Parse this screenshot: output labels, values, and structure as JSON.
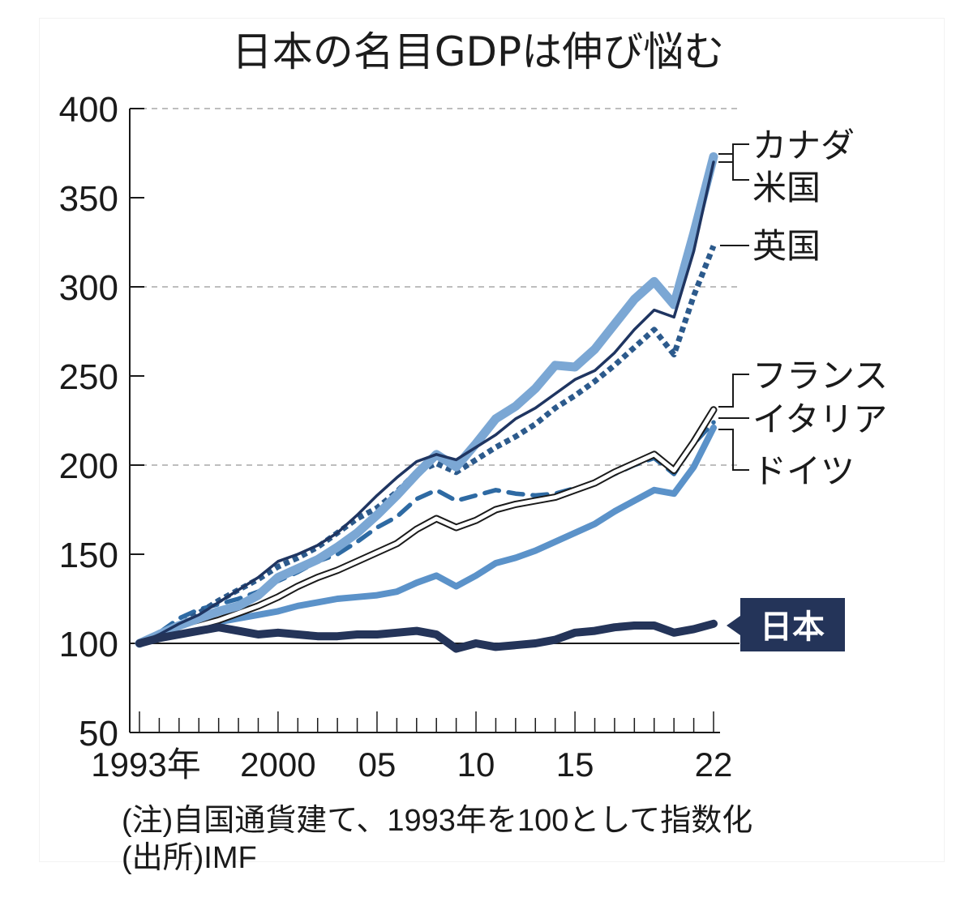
{
  "chart_data": {
    "type": "line",
    "title": "日本の名目GDPは伸び悩む",
    "xlabel": "",
    "ylabel": "",
    "ylim": [
      50,
      400
    ],
    "xlim": [
      1993,
      2022
    ],
    "y_ticks": [
      50,
      100,
      150,
      200,
      250,
      300,
      350,
      400
    ],
    "y_tick_labels": [
      "50",
      "100",
      "150",
      "200",
      "250",
      "300",
      "350",
      "400"
    ],
    "gridlines_dashed_at": [
      200,
      300,
      400
    ],
    "baseline": 100,
    "x_ticks_major": [
      1993,
      2000,
      2005,
      2010,
      2015,
      2022
    ],
    "x_tick_labels": [
      "1993年",
      "2000",
      "05",
      "10",
      "15",
      "22"
    ],
    "x": [
      1993,
      1994,
      1995,
      1996,
      1997,
      1998,
      1999,
      2000,
      2001,
      2002,
      2003,
      2004,
      2005,
      2006,
      2007,
      2008,
      2009,
      2010,
      2011,
      2012,
      2013,
      2014,
      2015,
      2016,
      2017,
      2018,
      2019,
      2020,
      2021,
      2022
    ],
    "series": [
      {
        "name": "カナダ",
        "style": "thick-light",
        "color": "#7ba7d4",
        "values": [
          100,
          105,
          110,
          114,
          118,
          121,
          127,
          137,
          142,
          147,
          154,
          162,
          172,
          183,
          195,
          206,
          199,
          212,
          226,
          233,
          243,
          256,
          255,
          265,
          279,
          293,
          303,
          290,
          330,
          373
        ]
      },
      {
        "name": "米国",
        "style": "thin-solid",
        "color": "#1f3561",
        "values": [
          100,
          105,
          111,
          116,
          123,
          130,
          137,
          146,
          150,
          155,
          162,
          172,
          183,
          193,
          202,
          206,
          203,
          210,
          217,
          226,
          232,
          240,
          248,
          253,
          263,
          276,
          287,
          283,
          320,
          370
        ]
      },
      {
        "name": "英国",
        "style": "dotted",
        "color": "#2c5a8c",
        "values": [
          100,
          106,
          110,
          117,
          124,
          130,
          136,
          143,
          148,
          154,
          162,
          170,
          176,
          185,
          196,
          201,
          196,
          203,
          210,
          216,
          223,
          232,
          239,
          247,
          256,
          266,
          276,
          262,
          295,
          323
        ]
      },
      {
        "name": "フランス",
        "style": "double",
        "color": "#1a1a1a",
        "values": [
          100,
          103,
          107,
          110,
          113,
          117,
          121,
          126,
          132,
          137,
          141,
          146,
          151,
          156,
          164,
          170,
          165,
          169,
          175,
          178,
          180,
          182,
          186,
          190,
          196,
          201,
          206,
          197,
          213,
          231
        ]
      },
      {
        "name": "イタリア",
        "style": "dashed",
        "color": "#2e6aa3",
        "values": [
          100,
          106,
          114,
          119,
          122,
          125,
          129,
          135,
          140,
          146,
          150,
          157,
          165,
          171,
          181,
          186,
          180,
          183,
          186,
          184,
          183,
          184,
          187,
          190,
          195,
          200,
          204,
          195,
          212,
          224
        ]
      },
      {
        "name": "ドイツ",
        "style": "medium",
        "color": "#5b92c9",
        "values": [
          100,
          104,
          108,
          110,
          112,
          114,
          116,
          118,
          121,
          123,
          125,
          126,
          127,
          129,
          134,
          138,
          132,
          138,
          145,
          148,
          152,
          157,
          162,
          167,
          174,
          180,
          186,
          184,
          199,
          221
        ]
      },
      {
        "name": "日本",
        "style": "thick-dark",
        "color": "#243459",
        "values": [
          100,
          103,
          105,
          107,
          109,
          107,
          105,
          106,
          105,
          104,
          104,
          105,
          105,
          106,
          107,
          105,
          97,
          100,
          98,
          99,
          100,
          102,
          106,
          107,
          109,
          110,
          110,
          106,
          108,
          111
        ]
      }
    ],
    "legend": [
      {
        "label": "カナダ",
        "group": "top"
      },
      {
        "label": "米国",
        "group": "top"
      },
      {
        "label": "英国",
        "group": "top"
      },
      {
        "label": "フランス",
        "group": "middle"
      },
      {
        "label": "イタリア",
        "group": "middle"
      },
      {
        "label": "ドイツ",
        "group": "middle"
      },
      {
        "label": "日本",
        "group": "bottom",
        "highlight_color": "#243459"
      }
    ],
    "legend_placement": "right"
  },
  "notes": {
    "note": "(注)自国通貨建て、1993年を100として指数化",
    "source": "(出所)IMF"
  },
  "colors": {
    "grid": "#a8a8a8",
    "axis": "#1a1a1a",
    "japan_badge": "#243459"
  }
}
